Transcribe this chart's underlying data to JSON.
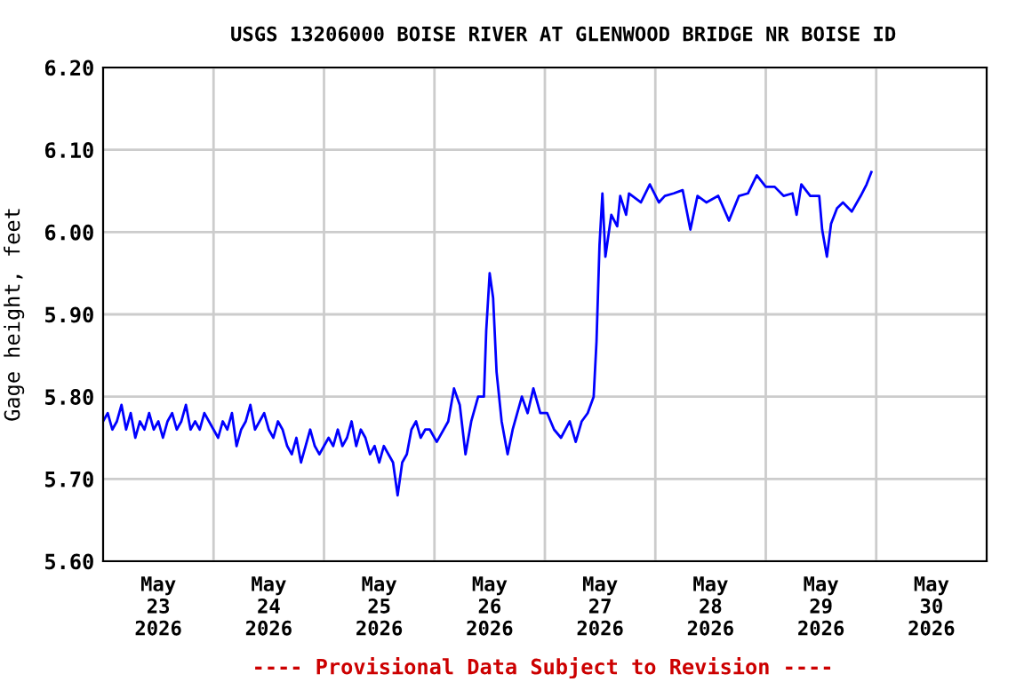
{
  "chart_data": {
    "type": "line",
    "title": "USGS 13206000 BOISE RIVER AT GLENWOOD BRIDGE NR BOISE ID",
    "ylabel": "Gage height, feet",
    "annotations": [
      "---- Provisional Data Subject to Revision ----"
    ],
    "xlim": [
      "2026-05-23T00:00",
      "2026-05-31T00:00"
    ],
    "xticks": [
      {
        "value": "2026-05-23T12:00",
        "label": "May\n23\n2026"
      },
      {
        "value": "2026-05-24T00:00",
        "label": null
      },
      {
        "value": "2026-05-24T12:00",
        "label": "May\n24\n2026"
      },
      {
        "value": "2026-05-25T00:00",
        "label": null
      },
      {
        "value": "2026-05-25T12:00",
        "label": "May\n25\n2026"
      },
      {
        "value": "2026-05-26T00:00",
        "label": null
      },
      {
        "value": "2026-05-26T12:00",
        "label": "May\n26\n2026"
      },
      {
        "value": "2026-05-27T00:00",
        "label": null
      },
      {
        "value": "2026-05-27T12:00",
        "label": "May\n27\n2026"
      },
      {
        "value": "2026-05-28T00:00",
        "label": null
      },
      {
        "value": "2026-05-28T12:00",
        "label": "May\n28\n2026"
      },
      {
        "value": "2026-05-29T00:00",
        "label": null
      },
      {
        "value": "2026-05-29T12:00",
        "label": "May\n29\n2026"
      },
      {
        "value": "2026-05-30T00:00",
        "label": null
      },
      {
        "value": "2026-05-30T12:00",
        "label": "May\n30\n2026"
      }
    ],
    "ylim": [
      5.6,
      6.2
    ],
    "yticks": [
      {
        "value": 5.6,
        "label": "5.60"
      },
      {
        "value": 5.7,
        "label": "5.70"
      },
      {
        "value": 5.8,
        "label": "5.80"
      },
      {
        "value": 5.9,
        "label": "5.90"
      },
      {
        "value": 6.0,
        "label": "6.00"
      },
      {
        "value": 6.1,
        "label": "6.10"
      },
      {
        "value": 6.2,
        "label": "6.20"
      }
    ],
    "grid": true,
    "legend": false,
    "series": [
      {
        "color": "#0000ff",
        "x": [
          "2026-05-23T00:00",
          "2026-05-23T01:00",
          "2026-05-23T02:00",
          "2026-05-23T03:00",
          "2026-05-23T04:00",
          "2026-05-23T05:00",
          "2026-05-23T06:00",
          "2026-05-23T07:00",
          "2026-05-23T08:00",
          "2026-05-23T09:00",
          "2026-05-23T10:00",
          "2026-05-23T11:00",
          "2026-05-23T12:00",
          "2026-05-23T13:00",
          "2026-05-23T14:00",
          "2026-05-23T15:00",
          "2026-05-23T16:00",
          "2026-05-23T17:00",
          "2026-05-23T18:00",
          "2026-05-23T19:00",
          "2026-05-23T20:00",
          "2026-05-23T21:00",
          "2026-05-23T22:00",
          "2026-05-23T23:00",
          "2026-05-24T00:00",
          "2026-05-24T01:00",
          "2026-05-24T02:00",
          "2026-05-24T03:00",
          "2026-05-24T04:00",
          "2026-05-24T05:00",
          "2026-05-24T06:00",
          "2026-05-24T07:00",
          "2026-05-24T08:00",
          "2026-05-24T09:00",
          "2026-05-24T10:00",
          "2026-05-24T11:00",
          "2026-05-24T12:00",
          "2026-05-24T13:00",
          "2026-05-24T14:00",
          "2026-05-24T15:00",
          "2026-05-24T16:00",
          "2026-05-24T17:00",
          "2026-05-24T18:00",
          "2026-05-24T19:00",
          "2026-05-24T20:00",
          "2026-05-24T21:00",
          "2026-05-24T22:00",
          "2026-05-24T23:00",
          "2026-05-25T00:00",
          "2026-05-25T01:00",
          "2026-05-25T02:00",
          "2026-05-25T03:00",
          "2026-05-25T04:00",
          "2026-05-25T05:00",
          "2026-05-25T06:00",
          "2026-05-25T07:00",
          "2026-05-25T08:00",
          "2026-05-25T09:00",
          "2026-05-25T10:00",
          "2026-05-25T11:00",
          "2026-05-25T12:00",
          "2026-05-25T13:00",
          "2026-05-25T14:00",
          "2026-05-25T15:00",
          "2026-05-25T16:00",
          "2026-05-25T17:00",
          "2026-05-25T18:00",
          "2026-05-25T19:00",
          "2026-05-25T20:00",
          "2026-05-25T21:00",
          "2026-05-25T22:00",
          "2026-05-25T23:00",
          "2026-05-26T00:30",
          "2026-05-26T03:00",
          "2026-05-26T04:15",
          "2026-05-26T05:30",
          "2026-05-26T06:45",
          "2026-05-26T08:00",
          "2026-05-26T09:30",
          "2026-05-26T10:45",
          "2026-05-26T11:15",
          "2026-05-26T12:00",
          "2026-05-26T12:45",
          "2026-05-26T13:30",
          "2026-05-26T14:36",
          "2026-05-26T15:54",
          "2026-05-26T17:00",
          "2026-05-26T19:00",
          "2026-05-26T20:15",
          "2026-05-26T21:30",
          "2026-05-26T23:00",
          "2026-05-27T00:30",
          "2026-05-27T02:00",
          "2026-05-27T03:30",
          "2026-05-27T05:24",
          "2026-05-27T06:42",
          "2026-05-27T08:00",
          "2026-05-27T09:18",
          "2026-05-27T10:36",
          "2026-05-27T11:13",
          "2026-05-27T11:52",
          "2026-05-27T12:30",
          "2026-05-27T13:09",
          "2026-05-27T14:26",
          "2026-05-27T15:43",
          "2026-05-27T16:22",
          "2026-05-27T17:39",
          "2026-05-27T18:17",
          "2026-05-27T20:52",
          "2026-05-27T22:48",
          "2026-05-28T00:46",
          "2026-05-28T02:04",
          "2026-05-28T04:00",
          "2026-05-28T05:56",
          "2026-05-28T07:37",
          "2026-05-28T09:10",
          "2026-05-28T11:05",
          "2026-05-28T13:40",
          "2026-05-28T16:00",
          "2026-05-28T18:11",
          "2026-05-28T20:07",
          "2026-05-28T22:03",
          "2026-05-29T00:00",
          "2026-05-29T01:56",
          "2026-05-29T03:52",
          "2026-05-29T05:48",
          "2026-05-29T06:42",
          "2026-05-29T07:44",
          "2026-05-29T09:40",
          "2026-05-29T11:37",
          "2026-05-29T12:15",
          "2026-05-29T13:17",
          "2026-05-29T14:11",
          "2026-05-29T15:29",
          "2026-05-29T16:46",
          "2026-05-29T18:42",
          "2026-05-29T20:38",
          "2026-05-29T21:55",
          "2026-05-29T22:57"
        ],
        "values": [
          5.77,
          5.78,
          5.76,
          5.77,
          5.79,
          5.76,
          5.78,
          5.75,
          5.77,
          5.76,
          5.78,
          5.76,
          5.77,
          5.75,
          5.77,
          5.78,
          5.76,
          5.77,
          5.79,
          5.76,
          5.77,
          5.76,
          5.78,
          5.77,
          5.76,
          5.75,
          5.77,
          5.76,
          5.78,
          5.74,
          5.76,
          5.77,
          5.79,
          5.76,
          5.77,
          5.78,
          5.76,
          5.75,
          5.77,
          5.76,
          5.74,
          5.73,
          5.75,
          5.72,
          5.74,
          5.76,
          5.74,
          5.73,
          5.74,
          5.75,
          5.74,
          5.76,
          5.74,
          5.75,
          5.77,
          5.74,
          5.76,
          5.75,
          5.73,
          5.74,
          5.72,
          5.74,
          5.73,
          5.72,
          5.68,
          5.72,
          5.73,
          5.76,
          5.77,
          5.75,
          5.76,
          5.76,
          5.745,
          5.77,
          5.81,
          5.79,
          5.73,
          5.77,
          5.8,
          5.8,
          5.88,
          5.95,
          5.92,
          5.83,
          5.77,
          5.73,
          5.76,
          5.8,
          5.78,
          5.81,
          5.78,
          5.78,
          5.76,
          5.75,
          5.77,
          5.745,
          5.77,
          5.78,
          5.8,
          5.867,
          5.984,
          6.047,
          5.97,
          6.021,
          6.007,
          6.044,
          6.021,
          6.047,
          6.036,
          6.058,
          6.036,
          6.044,
          6.047,
          6.051,
          6.003,
          6.044,
          6.036,
          6.044,
          6.014,
          6.044,
          6.047,
          6.069,
          6.055,
          6.055,
          6.044,
          6.047,
          6.021,
          6.058,
          6.044,
          6.044,
          6.003,
          5.97,
          6.01,
          6.029,
          6.036,
          6.025,
          6.044,
          6.058,
          6.073
        ]
      }
    ]
  }
}
